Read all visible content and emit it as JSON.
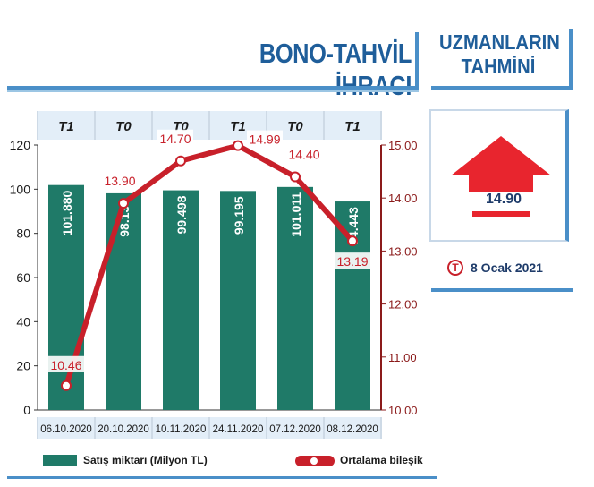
{
  "header": {
    "title": "BONO-TAHVİL İHRACI"
  },
  "sidebar": {
    "title_line1": "UZMANLARIN",
    "title_line2": "TAHMİNİ",
    "forecast_value": "14.90",
    "forecast_direction": "up",
    "logo_letter": "T",
    "date": "8 Ocak 2021"
  },
  "chart_data": {
    "type": "bar",
    "categories": [
      "06.10.2020",
      "20.10.2020",
      "10.11.2020",
      "24.11.2020",
      "07.12.2020",
      "08.12.2020"
    ],
    "top_labels": [
      "T1",
      "T0",
      "T0",
      "T1",
      "T0",
      "T1"
    ],
    "series": [
      {
        "name": "Satış miktarı (Milyon TL)",
        "type": "bar",
        "axis": "left",
        "values": [
          101.88,
          98.138,
          99.498,
          99.195,
          101.011,
          94.443
        ],
        "labels": [
          "101.880",
          "98.138",
          "99.498",
          "99.195",
          "101.011",
          "94.443"
        ],
        "color": "#1f7a68"
      },
      {
        "name": "Ortalama bileşik",
        "type": "line",
        "axis": "right",
        "values": [
          10.46,
          13.9,
          14.7,
          14.99,
          14.4,
          13.19
        ],
        "labels": [
          "10.46",
          "13.90",
          "14.70",
          "14.99",
          "14.40",
          "13.19"
        ],
        "color": "#c8202a"
      }
    ],
    "y_left": {
      "min": 0,
      "max": 120,
      "ticks": [
        "0",
        "20",
        "40",
        "60",
        "80",
        "100",
        "120"
      ]
    },
    "y_right": {
      "min": 10,
      "max": 15,
      "ticks": [
        "10.00",
        "11.00",
        "12.00",
        "13.00",
        "14.00",
        "15.00"
      ],
      "color": "#8b1a1a"
    },
    "grid": false,
    "legend_position": "bottom"
  }
}
